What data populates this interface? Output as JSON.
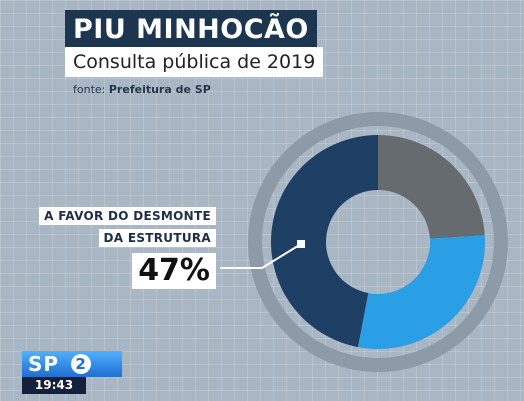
{
  "header": {
    "title": "PIU MINHOCÃO",
    "subtitle": "Consulta pública de 2019",
    "source_prefix": "fonte:",
    "source_name": "Prefeitura de SP"
  },
  "callout": {
    "line1": "A FAVOR DO DESMONTE",
    "line2": "DA ESTRUTURA",
    "value": "47%"
  },
  "logo": {
    "channel": "SP",
    "number": "2",
    "time": "19:43"
  },
  "colors": {
    "favor": "#1c3f63",
    "second": "#2a9fe6",
    "third": "#666b70",
    "ring": "#8d9aa7",
    "background": "#a9b6c3"
  },
  "chart_data": {
    "type": "pie",
    "donut": true,
    "slices": [
      {
        "label": "A FAVOR DO DESMONTE DA ESTRUTURA",
        "value": 47,
        "color": "#1c3f63"
      },
      {
        "value": 29,
        "color": "#2a9fe6"
      },
      {
        "value": 24,
        "color": "#666b70"
      }
    ]
  }
}
